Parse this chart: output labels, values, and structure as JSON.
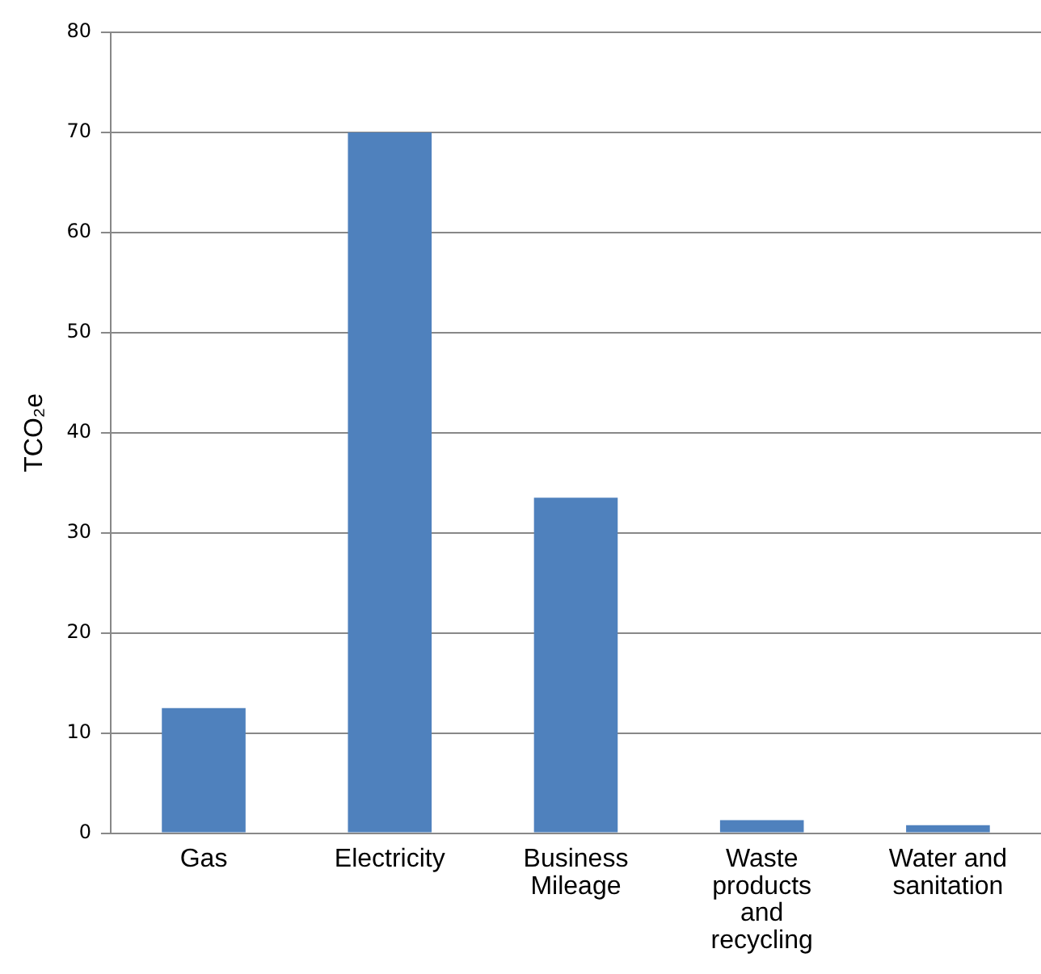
{
  "chart_data": {
    "type": "bar",
    "ylabel": "TCO₂e",
    "categories": [
      "Gas",
      "Electricity",
      "Business Mileage",
      "Waste products and recycling",
      "Water and sanitation"
    ],
    "values": [
      12.5,
      70,
      33.5,
      1.3,
      0.8
    ],
    "color": "#4f81bd",
    "ylim": [
      0,
      80
    ],
    "yticks": [
      0,
      10,
      20,
      30,
      40,
      50,
      60,
      70,
      80
    ],
    "grid": "y"
  }
}
